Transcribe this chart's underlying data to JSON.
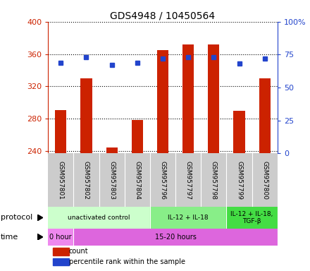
{
  "title": "GDS4948 / 10450564",
  "samples": [
    "GSM957801",
    "GSM957802",
    "GSM957803",
    "GSM957804",
    "GSM957796",
    "GSM957797",
    "GSM957798",
    "GSM957799",
    "GSM957800"
  ],
  "counts": [
    291,
    330,
    244,
    278,
    365,
    372,
    372,
    290,
    330
  ],
  "percentile_ranks": [
    69,
    73,
    67,
    69,
    72,
    73,
    73,
    68,
    72
  ],
  "ylim_left": [
    237,
    400
  ],
  "ylim_right": [
    0,
    100
  ],
  "yticks_left": [
    240,
    280,
    320,
    360,
    400
  ],
  "yticks_right": [
    0,
    25,
    50,
    75,
    100
  ],
  "bar_color": "#cc2200",
  "dot_color": "#2244cc",
  "plot_bg": "#ffffff",
  "label_bg": "#cccccc",
  "protocol_groups": [
    {
      "label": "unactivated control",
      "start": 0,
      "end": 4,
      "color": "#ccffcc"
    },
    {
      "label": "IL-12 + IL-18",
      "start": 4,
      "end": 7,
      "color": "#88ee88"
    },
    {
      "label": "IL-12 + IL-18,\nTGF-β",
      "start": 7,
      "end": 9,
      "color": "#44dd44"
    }
  ],
  "time_groups": [
    {
      "label": "0 hour",
      "start": 0,
      "end": 1,
      "color": "#ee88ee"
    },
    {
      "label": "15-20 hours",
      "start": 1,
      "end": 9,
      "color": "#dd66dd"
    }
  ],
  "protocol_label": "protocol",
  "time_label": "time",
  "legend_count": "count",
  "legend_percentile": "percentile rank within the sample",
  "left_axis_color": "#cc2200",
  "right_axis_color": "#2244cc",
  "bar_bottom": 237
}
